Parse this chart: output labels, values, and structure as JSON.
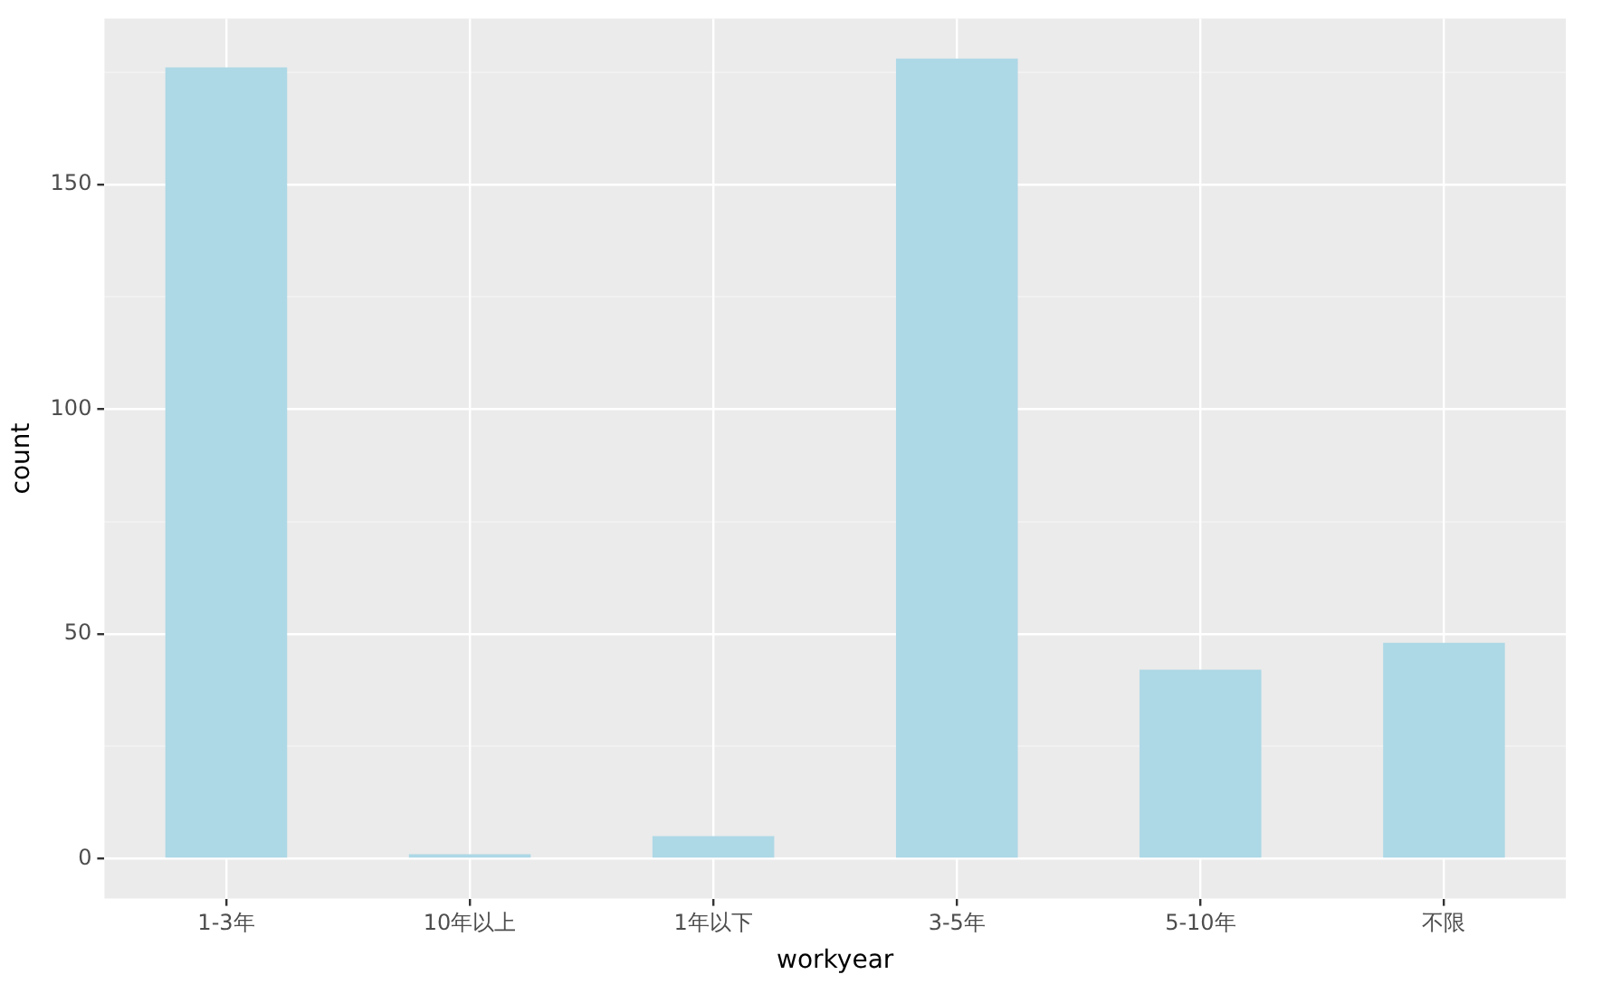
{
  "chart_data": {
    "type": "bar",
    "xlabel": "workyear",
    "ylabel": "count",
    "categories": [
      "1-3年",
      "10年以上",
      "1年以下",
      "3-5年",
      "5-10年",
      "不限"
    ],
    "values": [
      176,
      1,
      5,
      178,
      42,
      48
    ],
    "color": "#add8e6",
    "ylim": [
      -8.9,
      186.9
    ],
    "yticks": [
      0,
      {
        "value": 25,
        "label": null
      },
      50,
      {
        "value": 75,
        "label": null
      },
      100,
      {
        "value": 125,
        "label": null
      },
      150,
      {
        "value": 175,
        "label": null
      }
    ],
    "grid": true
  }
}
